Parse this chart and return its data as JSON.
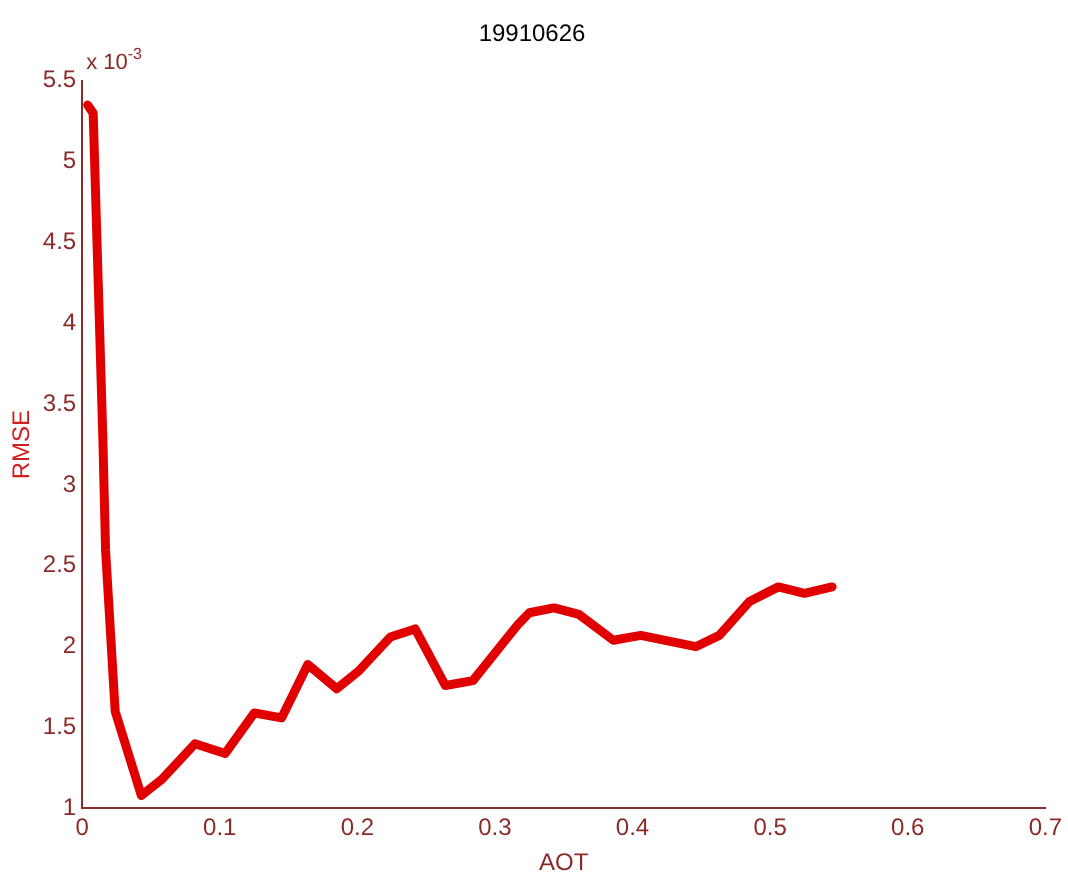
{
  "chart_data": {
    "type": "line",
    "title": "19910626",
    "xlabel": "AOT",
    "ylabel": "RMSE",
    "annotations": [
      "x 10$^{-3}$"
    ],
    "series": [
      {
        "color": "#e00000",
        "x": [
          0.004,
          0.008,
          0.015,
          0.017,
          0.024,
          0.043,
          0.058,
          0.082,
          0.104,
          0.125,
          0.145,
          0.164,
          0.185,
          0.201,
          0.224,
          0.242,
          0.264,
          0.284,
          0.316,
          0.325,
          0.343,
          0.361,
          0.386,
          0.406,
          0.446,
          0.463,
          0.485,
          0.506,
          0.525,
          0.545
        ],
        "values": [
          5.35,
          5.3,
          3.3,
          2.6,
          1.6,
          1.08,
          1.18,
          1.4,
          1.34,
          1.59,
          1.56,
          1.89,
          1.74,
          1.85,
          2.06,
          2.11,
          1.76,
          1.79,
          2.13,
          2.21,
          2.24,
          2.2,
          2.04,
          2.07,
          2.0,
          2.07,
          2.28,
          2.37,
          2.33,
          2.37
        ]
      }
    ],
    "xlim": [
      0,
      0.7
    ],
    "xticks": [
      0,
      0.1,
      0.2,
      0.3,
      0.4,
      0.5,
      0.6,
      0.7
    ],
    "ylim": [
      1,
      5.5
    ],
    "yticks": [
      1,
      1.5,
      2,
      2.5,
      3,
      3.5,
      4,
      4.5,
      5,
      5.5
    ],
    "grid": false,
    "legend": false,
    "marker": "none",
    "line_style": "solid"
  }
}
